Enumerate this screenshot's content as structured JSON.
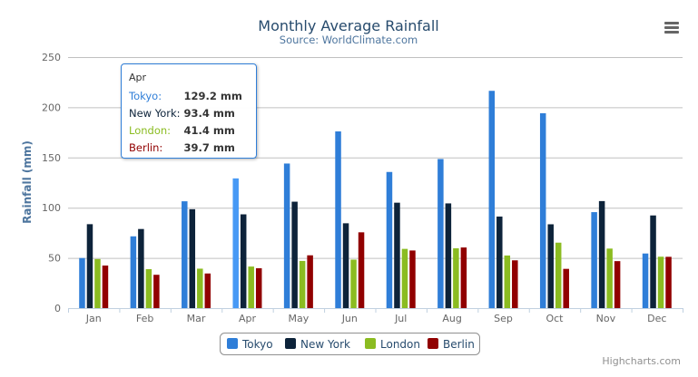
{
  "chart_data": {
    "type": "bar",
    "title": "Monthly Average Rainfall",
    "subtitle": "Source: WorldClimate.com",
    "xlabel": "",
    "ylabel": "Rainfall (mm)",
    "ylim": [
      0,
      250
    ],
    "yticks": [
      0,
      50,
      100,
      150,
      200,
      250
    ],
    "grid": true,
    "legend_position": "bottom",
    "categories": [
      "Jan",
      "Feb",
      "Mar",
      "Apr",
      "May",
      "Jun",
      "Jul",
      "Aug",
      "Sep",
      "Oct",
      "Nov",
      "Dec"
    ],
    "series": [
      {
        "name": "Tokyo",
        "color": "#2f7ed8",
        "values": [
          49.9,
          71.5,
          106.4,
          129.2,
          144.0,
          176.0,
          135.6,
          148.5,
          216.4,
          194.1,
          95.6,
          54.4
        ]
      },
      {
        "name": "New York",
        "color": "#0d233a",
        "values": [
          83.6,
          78.8,
          98.5,
          93.4,
          106.0,
          84.5,
          105.0,
          104.3,
          91.2,
          83.5,
          106.6,
          92.3
        ]
      },
      {
        "name": "London",
        "color": "#8bbc21",
        "values": [
          48.9,
          38.8,
          39.3,
          41.4,
          47.0,
          48.3,
          59.0,
          59.6,
          52.4,
          65.2,
          59.3,
          51.2
        ]
      },
      {
        "name": "Berlin",
        "color": "#910000",
        "values": [
          42.4,
          33.2,
          34.5,
          39.7,
          52.6,
          75.5,
          57.4,
          60.4,
          47.6,
          39.1,
          46.8,
          51.1
        ]
      }
    ]
  },
  "tooltip": {
    "header": "Apr",
    "rows": [
      {
        "name": "Tokyo:",
        "value": "129.2 mm",
        "color": "#2f7ed8"
      },
      {
        "name": "New York:",
        "value": "93.4 mm",
        "color": "#0d233a"
      },
      {
        "name": "London:",
        "value": "41.4 mm",
        "color": "#8bbc21"
      },
      {
        "name": "Berlin:",
        "value": "39.7 mm",
        "color": "#910000"
      }
    ]
  },
  "menu_icon": "hamburger-menu-icon",
  "credits": "Highcharts.com"
}
